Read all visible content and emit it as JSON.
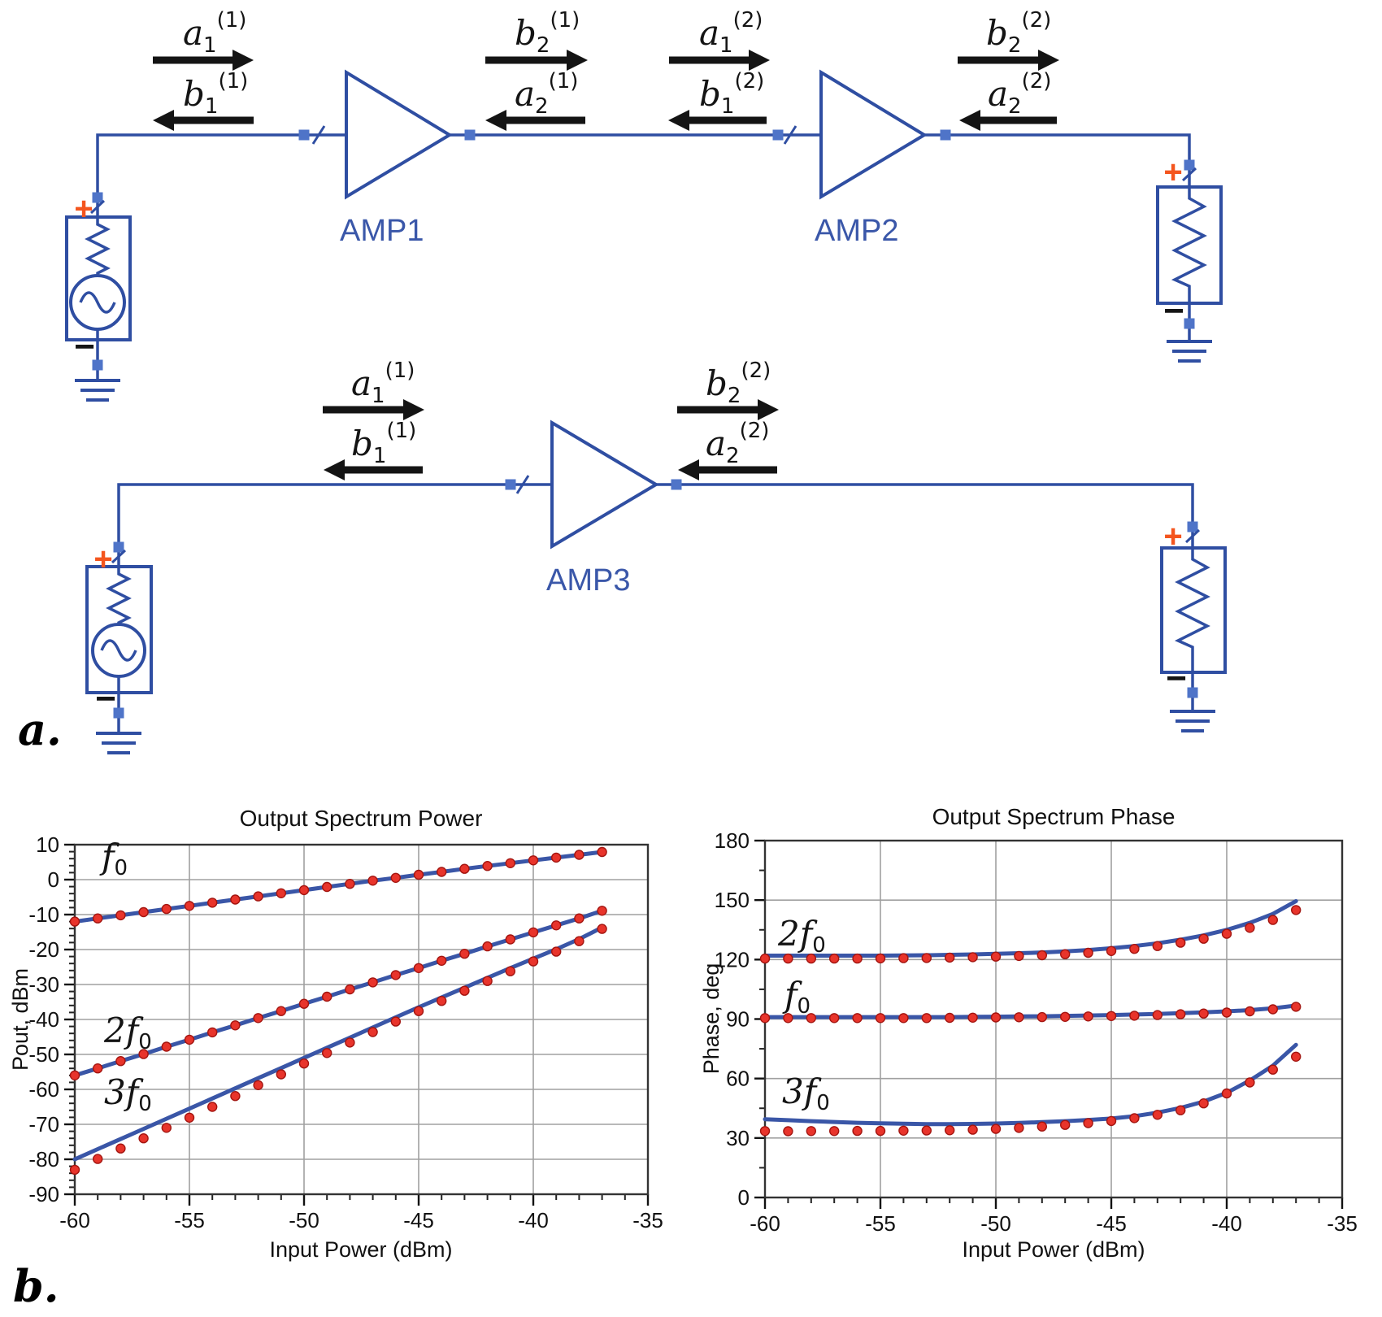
{
  "figure": {
    "panel_a_label": "a.",
    "panel_b_label": "b."
  },
  "colors": {
    "wire": "#2f4ea2",
    "pin": "#4f74c8",
    "arrow": "#141414",
    "plus": "#f4551e",
    "amp_label": "#3a57a9",
    "line": "#3a56a7",
    "dot": "#e8342b",
    "dot_edge": "#a31510",
    "grid": "#a0a0a0",
    "axis": "#333333"
  },
  "circuit": {
    "amps": [
      {
        "label": "AMP1"
      },
      {
        "label": "AMP2"
      },
      {
        "label": "AMP3"
      }
    ],
    "plus_sign": "+",
    "minus_sign": "−",
    "wave_labels": [
      {
        "id": "a1-1-top",
        "letter": "a",
        "sub": "1",
        "sup": "(1)",
        "direction": "right"
      },
      {
        "id": "b1-1-top",
        "letter": "b",
        "sub": "1",
        "sup": "(1)",
        "direction": "left"
      },
      {
        "id": "b2-1-top",
        "letter": "b",
        "sub": "2",
        "sup": "(1)",
        "direction": "right"
      },
      {
        "id": "a2-1-top",
        "letter": "a",
        "sub": "2",
        "sup": "(1)",
        "direction": "left"
      },
      {
        "id": "a1-2-top",
        "letter": "a",
        "sub": "1",
        "sup": "(2)",
        "direction": "right"
      },
      {
        "id": "b1-2-top",
        "letter": "b",
        "sub": "1",
        "sup": "(2)",
        "direction": "left"
      },
      {
        "id": "b2-2-top",
        "letter": "b",
        "sub": "2",
        "sup": "(2)",
        "direction": "right"
      },
      {
        "id": "a2-2-top",
        "letter": "a",
        "sub": "2",
        "sup": "(2)",
        "direction": "left"
      },
      {
        "id": "a1-1-bot",
        "letter": "a",
        "sub": "1",
        "sup": "(1)",
        "direction": "right"
      },
      {
        "id": "b1-1-bot",
        "letter": "b",
        "sub": "1",
        "sup": "(1)",
        "direction": "left"
      },
      {
        "id": "b2-2-bot",
        "letter": "b",
        "sub": "2",
        "sup": "(2)",
        "direction": "right"
      },
      {
        "id": "a2-2-bot",
        "letter": "a",
        "sub": "2",
        "sup": "(2)",
        "direction": "left"
      }
    ]
  },
  "chart_data": [
    {
      "type": "line",
      "title": "Output Spectrum Power",
      "xlabel": "Input Power (dBm)",
      "ylabel": "Pout, dBm",
      "xlim": [
        -60,
        -35
      ],
      "xticks": [
        -60,
        -55,
        -50,
        -45,
        -40,
        -35
      ],
      "xminor": 1,
      "ylim": [
        -90,
        10
      ],
      "yticks": [
        10,
        0,
        -10,
        -20,
        -30,
        -40,
        -50,
        -60,
        -70,
        -80,
        -90
      ],
      "yminor": 2,
      "grid": true,
      "legend": "inline-curve-labels",
      "line_color": "#3a56a7",
      "dot_color": "#e8342b",
      "x": [
        -60,
        -59,
        -58,
        -57,
        -56,
        -55,
        -54,
        -53,
        -52,
        -51,
        -50,
        -49,
        -48,
        -47,
        -46,
        -45,
        -44,
        -43,
        -42,
        -41,
        -40,
        -39,
        -38,
        -37
      ],
      "series": [
        {
          "name": "f0",
          "label_main": "f",
          "label_sub": "0",
          "line": [
            -12.0,
            -11.1,
            -10.2,
            -9.3,
            -8.4,
            -7.5,
            -6.6,
            -5.7,
            -4.8,
            -3.9,
            -3.0,
            -2.1,
            -1.2,
            -0.3,
            0.5,
            1.4,
            2.2,
            3.1,
            3.9,
            4.7,
            5.5,
            6.3,
            7.1,
            7.9
          ],
          "dots": [
            -12.0,
            -11.1,
            -10.2,
            -9.3,
            -8.4,
            -7.5,
            -6.6,
            -5.7,
            -4.8,
            -3.9,
            -3.0,
            -2.1,
            -1.2,
            -0.3,
            0.5,
            1.4,
            2.2,
            3.1,
            3.9,
            4.7,
            5.5,
            6.3,
            7.1,
            7.9
          ]
        },
        {
          "name": "2f0",
          "label_main": "2f",
          "label_sub": "0",
          "line": [
            -56.0,
            -54.0,
            -51.9,
            -49.9,
            -47.8,
            -45.8,
            -43.7,
            -41.7,
            -39.6,
            -37.6,
            -35.5,
            -33.5,
            -31.4,
            -29.4,
            -27.3,
            -25.3,
            -23.2,
            -21.2,
            -19.1,
            -17.1,
            -15.1,
            -13.1,
            -11.1,
            -8.9
          ],
          "dots": [
            -56.0,
            -54.0,
            -51.9,
            -49.9,
            -47.8,
            -45.8,
            -43.7,
            -41.7,
            -39.6,
            -37.6,
            -35.5,
            -33.5,
            -31.4,
            -29.4,
            -27.3,
            -25.3,
            -23.2,
            -21.2,
            -19.1,
            -17.1,
            -15.1,
            -13.1,
            -11.1,
            -8.9
          ]
        },
        {
          "name": "3f0",
          "label_main": "3f",
          "label_sub": "0",
          "line": [
            -80.0,
            -77.1,
            -74.2,
            -71.3,
            -68.4,
            -65.5,
            -62.6,
            -59.7,
            -56.8,
            -53.9,
            -51.0,
            -48.1,
            -45.2,
            -42.3,
            -39.4,
            -36.5,
            -33.7,
            -30.9,
            -28.1,
            -25.3,
            -22.6,
            -19.9,
            -17.0,
            -13.7
          ],
          "dots": [
            -83.0,
            -79.9,
            -76.9,
            -74.0,
            -71.0,
            -68.1,
            -65.0,
            -61.9,
            -58.8,
            -55.7,
            -52.6,
            -49.6,
            -46.6,
            -43.6,
            -40.6,
            -37.6,
            -34.7,
            -31.8,
            -29.0,
            -26.2,
            -23.4,
            -20.6,
            -17.6,
            -14.1
          ]
        }
      ]
    },
    {
      "type": "line",
      "title": "Output Spectrum Phase",
      "xlabel": "Input Power (dBm)",
      "ylabel": "Phase, deg",
      "xlim": [
        -60,
        -35
      ],
      "xticks": [
        -60,
        -55,
        -50,
        -45,
        -40,
        -35
      ],
      "xminor": 1,
      "ylim": [
        0,
        180
      ],
      "yticks": [
        180,
        150,
        120,
        90,
        60,
        30,
        0
      ],
      "yminor": 15,
      "grid": true,
      "legend": "inline-curve-labels",
      "line_color": "#3a56a7",
      "dot_color": "#e8342b",
      "x": [
        -60,
        -59,
        -58,
        -57,
        -56,
        -55,
        -54,
        -53,
        -52,
        -51,
        -50,
        -49,
        -48,
        -47,
        -46,
        -45,
        -44,
        -43,
        -42,
        -41,
        -40,
        -39,
        -38,
        -37
      ],
      "series": [
        {
          "name": "2f0",
          "label_main": "2f",
          "label_sub": "0",
          "line": [
            122,
            122,
            122,
            122,
            122,
            122,
            122.1,
            122.2,
            122.4,
            122.6,
            122.9,
            123.2,
            123.6,
            124.1,
            124.8,
            125.7,
            126.8,
            128.2,
            130.0,
            132.2,
            135.0,
            138.5,
            143.0,
            149.5
          ],
          "dots": [
            120.5,
            120.5,
            120.5,
            120.5,
            120.5,
            120.6,
            120.7,
            120.8,
            121.0,
            121.2,
            121.5,
            121.8,
            122.2,
            122.7,
            123.4,
            124.3,
            125.4,
            126.8,
            128.5,
            130.5,
            133.0,
            136.0,
            140.0,
            145.0
          ]
        },
        {
          "name": "f0",
          "label_main": "f",
          "label_sub": "0",
          "line": [
            91,
            91,
            91,
            91,
            91,
            91,
            91,
            91,
            91,
            91.1,
            91.2,
            91.3,
            91.4,
            91.6,
            91.8,
            92.0,
            92.3,
            92.6,
            93.0,
            93.4,
            93.9,
            94.5,
            95.4,
            96.8
          ],
          "dots": [
            90.5,
            90.5,
            90.5,
            90.5,
            90.5,
            90.5,
            90.5,
            90.5,
            90.6,
            90.7,
            90.8,
            90.9,
            91.0,
            91.1,
            91.3,
            91.5,
            91.7,
            92.0,
            92.4,
            92.8,
            93.3,
            93.9,
            94.9,
            96.2
          ]
        },
        {
          "name": "3f0",
          "label_main": "3f",
          "label_sub": "0",
          "line": [
            39.5,
            39.0,
            38.5,
            38.1,
            37.7,
            37.4,
            37.2,
            37.0,
            37.0,
            37.1,
            37.3,
            37.6,
            38.0,
            38.5,
            39.1,
            39.8,
            41.0,
            42.8,
            45.2,
            48.4,
            52.8,
            59.0,
            66.5,
            77.0
          ],
          "dots": [
            33.5,
            33.4,
            33.5,
            33.5,
            33.6,
            33.6,
            33.7,
            33.8,
            33.9,
            34.2,
            34.6,
            35.1,
            35.8,
            36.6,
            37.5,
            38.6,
            40.0,
            41.7,
            44.0,
            47.5,
            52.5,
            58.0,
            64.5,
            71.0
          ]
        }
      ]
    }
  ]
}
